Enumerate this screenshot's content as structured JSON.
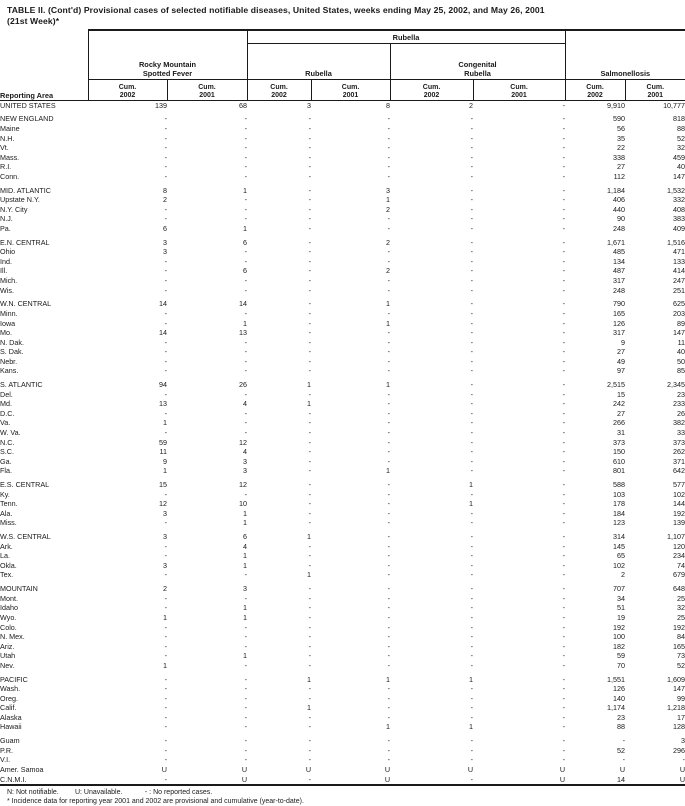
{
  "title": {
    "line1": "TABLE II. (Cont'd) Provisional cases of selected notifiable diseases, United States, weeks ending May 25, 2002, and May 26, 2001",
    "line2": "(21st Week)*"
  },
  "table": {
    "header": {
      "reporting_area": "Reporting Area",
      "rubella_parent": "Rubella",
      "groups": {
        "rmsf": [
          "Rocky Mountain",
          "Spotted Fever"
        ],
        "rubella": "Rubella",
        "congenital": [
          "Congenital",
          "Rubella"
        ],
        "salmonellosis": "Salmonellosis"
      },
      "cum_label": "Cum.",
      "years": [
        "2002",
        "2001"
      ]
    },
    "sections": [
      {
        "rows": [
          [
            "UNITED STATES",
            "139",
            "68",
            "3",
            "8",
            "2",
            "-",
            "9,910",
            "10,777"
          ]
        ]
      },
      {
        "rows": [
          [
            "NEW ENGLAND",
            "-",
            "-",
            "-",
            "-",
            "-",
            "-",
            "590",
            "818"
          ],
          [
            "Maine",
            "-",
            "-",
            "-",
            "-",
            "-",
            "-",
            "56",
            "88"
          ],
          [
            "N.H.",
            "-",
            "-",
            "-",
            "-",
            "-",
            "-",
            "35",
            "52"
          ],
          [
            "Vt.",
            "-",
            "-",
            "-",
            "-",
            "-",
            "-",
            "22",
            "32"
          ],
          [
            "Mass.",
            "-",
            "-",
            "-",
            "-",
            "-",
            "-",
            "338",
            "459"
          ],
          [
            "R.I.",
            "-",
            "-",
            "-",
            "-",
            "-",
            "-",
            "27",
            "40"
          ],
          [
            "Conn.",
            "-",
            "-",
            "-",
            "-",
            "-",
            "-",
            "112",
            "147"
          ]
        ]
      },
      {
        "rows": [
          [
            "MID. ATLANTIC",
            "8",
            "1",
            "-",
            "3",
            "-",
            "-",
            "1,184",
            "1,532"
          ],
          [
            "Upstate N.Y.",
            "2",
            "-",
            "-",
            "1",
            "-",
            "-",
            "406",
            "332"
          ],
          [
            "N.Y. City",
            "-",
            "-",
            "-",
            "2",
            "-",
            "-",
            "440",
            "408"
          ],
          [
            "N.J.",
            "-",
            "-",
            "-",
            "-",
            "-",
            "-",
            "90",
            "383"
          ],
          [
            "Pa.",
            "6",
            "1",
            "-",
            "-",
            "-",
            "-",
            "248",
            "409"
          ]
        ]
      },
      {
        "rows": [
          [
            "E.N. CENTRAL",
            "3",
            "6",
            "-",
            "2",
            "-",
            "-",
            "1,671",
            "1,516"
          ],
          [
            "Ohio",
            "3",
            "-",
            "-",
            "-",
            "-",
            "-",
            "485",
            "471"
          ],
          [
            "Ind.",
            "-",
            "-",
            "-",
            "-",
            "-",
            "-",
            "134",
            "133"
          ],
          [
            "Ill.",
            "-",
            "6",
            "-",
            "2",
            "-",
            "-",
            "487",
            "414"
          ],
          [
            "Mich.",
            "-",
            "-",
            "-",
            "-",
            "-",
            "-",
            "317",
            "247"
          ],
          [
            "Wis.",
            "-",
            "-",
            "-",
            "-",
            "-",
            "-",
            "248",
            "251"
          ]
        ]
      },
      {
        "rows": [
          [
            "W.N. CENTRAL",
            "14",
            "14",
            "-",
            "1",
            "-",
            "-",
            "790",
            "625"
          ],
          [
            "Minn.",
            "-",
            "-",
            "-",
            "-",
            "-",
            "-",
            "165",
            "203"
          ],
          [
            "Iowa",
            "-",
            "1",
            "-",
            "1",
            "-",
            "-",
            "126",
            "89"
          ],
          [
            "Mo.",
            "14",
            "13",
            "-",
            "-",
            "-",
            "-",
            "317",
            "147"
          ],
          [
            "N. Dak.",
            "-",
            "-",
            "-",
            "-",
            "-",
            "-",
            "9",
            "11"
          ],
          [
            "S. Dak.",
            "-",
            "-",
            "-",
            "-",
            "-",
            "-",
            "27",
            "40"
          ],
          [
            "Nebr.",
            "-",
            "-",
            "-",
            "-",
            "-",
            "-",
            "49",
            "50"
          ],
          [
            "Kans.",
            "-",
            "-",
            "-",
            "-",
            "-",
            "-",
            "97",
            "85"
          ]
        ]
      },
      {
        "rows": [
          [
            "S. ATLANTIC",
            "94",
            "26",
            "1",
            "1",
            "-",
            "-",
            "2,515",
            "2,345"
          ],
          [
            "Del.",
            "-",
            "-",
            "-",
            "-",
            "-",
            "-",
            "15",
            "23"
          ],
          [
            "Md.",
            "13",
            "4",
            "1",
            "-",
            "-",
            "-",
            "242",
            "233"
          ],
          [
            "D.C.",
            "-",
            "-",
            "-",
            "-",
            "-",
            "-",
            "27",
            "26"
          ],
          [
            "Va.",
            "1",
            "-",
            "-",
            "-",
            "-",
            "-",
            "266",
            "382"
          ],
          [
            "W. Va.",
            "-",
            "-",
            "-",
            "-",
            "-",
            "-",
            "31",
            "33"
          ],
          [
            "N.C.",
            "59",
            "12",
            "-",
            "-",
            "-",
            "-",
            "373",
            "373"
          ],
          [
            "S.C.",
            "11",
            "4",
            "-",
            "-",
            "-",
            "-",
            "150",
            "262"
          ],
          [
            "Ga.",
            "9",
            "3",
            "-",
            "-",
            "-",
            "-",
            "610",
            "371"
          ],
          [
            "Fla.",
            "1",
            "3",
            "-",
            "1",
            "-",
            "-",
            "801",
            "642"
          ]
        ]
      },
      {
        "rows": [
          [
            "E.S. CENTRAL",
            "15",
            "12",
            "-",
            "-",
            "1",
            "-",
            "588",
            "577"
          ],
          [
            "Ky.",
            "-",
            "-",
            "-",
            "-",
            "-",
            "-",
            "103",
            "102"
          ],
          [
            "Tenn.",
            "12",
            "10",
            "-",
            "-",
            "1",
            "-",
            "178",
            "144"
          ],
          [
            "Ala.",
            "3",
            "1",
            "-",
            "-",
            "-",
            "-",
            "184",
            "192"
          ],
          [
            "Miss.",
            "-",
            "1",
            "-",
            "-",
            "-",
            "-",
            "123",
            "139"
          ]
        ]
      },
      {
        "rows": [
          [
            "W.S. CENTRAL",
            "3",
            "6",
            "1",
            "-",
            "-",
            "-",
            "314",
            "1,107"
          ],
          [
            "Ark.",
            "-",
            "4",
            "-",
            "-",
            "-",
            "-",
            "145",
            "120"
          ],
          [
            "La.",
            "-",
            "1",
            "-",
            "-",
            "-",
            "-",
            "65",
            "234"
          ],
          [
            "Okla.",
            "3",
            "1",
            "-",
            "-",
            "-",
            "-",
            "102",
            "74"
          ],
          [
            "Tex.",
            "-",
            "-",
            "1",
            "-",
            "-",
            "-",
            "2",
            "679"
          ]
        ]
      },
      {
        "rows": [
          [
            "MOUNTAIN",
            "2",
            "3",
            "-",
            "-",
            "-",
            "-",
            "707",
            "648"
          ],
          [
            "Mont.",
            "-",
            "-",
            "-",
            "-",
            "-",
            "-",
            "34",
            "25"
          ],
          [
            "Idaho",
            "-",
            "1",
            "-",
            "-",
            "-",
            "-",
            "51",
            "32"
          ],
          [
            "Wyo.",
            "1",
            "1",
            "-",
            "-",
            "-",
            "-",
            "19",
            "25"
          ],
          [
            "Colo.",
            "-",
            "-",
            "-",
            "-",
            "-",
            "-",
            "192",
            "192"
          ],
          [
            "N. Mex.",
            "-",
            "-",
            "-",
            "-",
            "-",
            "-",
            "100",
            "84"
          ],
          [
            "Ariz.",
            "-",
            "-",
            "-",
            "-",
            "-",
            "-",
            "182",
            "165"
          ],
          [
            "Utah",
            "-",
            "1",
            "-",
            "-",
            "-",
            "-",
            "59",
            "73"
          ],
          [
            "Nev.",
            "1",
            "-",
            "-",
            "-",
            "-",
            "-",
            "70",
            "52"
          ]
        ]
      },
      {
        "rows": [
          [
            "PACIFIC",
            "-",
            "-",
            "1",
            "1",
            "1",
            "-",
            "1,551",
            "1,609"
          ],
          [
            "Wash.",
            "-",
            "-",
            "-",
            "-",
            "-",
            "-",
            "126",
            "147"
          ],
          [
            "Oreg.",
            "-",
            "-",
            "-",
            "-",
            "-",
            "-",
            "140",
            "99"
          ],
          [
            "Calif.",
            "-",
            "-",
            "1",
            "-",
            "-",
            "-",
            "1,174",
            "1,218"
          ],
          [
            "Alaska",
            "-",
            "-",
            "-",
            "-",
            "-",
            "-",
            "23",
            "17"
          ],
          [
            "Hawaii",
            "-",
            "-",
            "-",
            "1",
            "1",
            "-",
            "88",
            "128"
          ]
        ]
      },
      {
        "rows": [
          [
            "Guam",
            "-",
            "-",
            "-",
            "-",
            "-",
            "-",
            "-",
            "3"
          ],
          [
            "P.R.",
            "-",
            "-",
            "-",
            "-",
            "-",
            "-",
            "52",
            "296"
          ],
          [
            "V.I.",
            "-",
            "-",
            "-",
            "-",
            "-",
            "-",
            "-",
            "-"
          ],
          [
            "Amer. Samoa",
            "U",
            "U",
            "U",
            "U",
            "U",
            "U",
            "U",
            "U"
          ],
          [
            "C.N.M.I.",
            "-",
            "U",
            "-",
            "U",
            "-",
            "U",
            "14",
            "U"
          ]
        ]
      }
    ]
  },
  "footnotes": {
    "legend": [
      "N: Not notifiable.",
      "U: Unavailable.",
      "- : No reported cases."
    ],
    "note": "* Incidence data for reporting year 2001 and 2002 are provisional and cumulative (year-to-date)."
  }
}
